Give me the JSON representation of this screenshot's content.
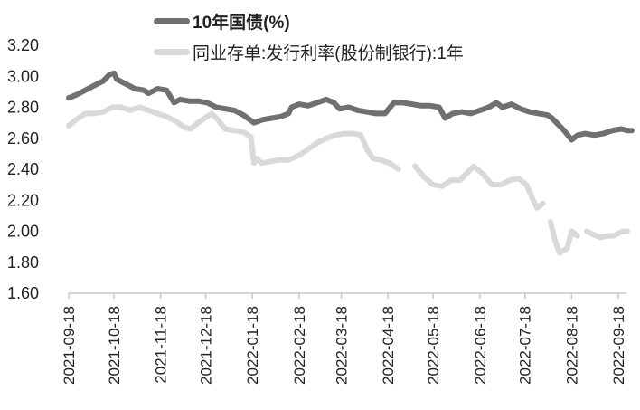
{
  "chart_data": {
    "type": "line",
    "title": "",
    "xlabel": "",
    "ylabel": "",
    "ylim": [
      1.6,
      3.2
    ],
    "yticks": [
      "3.20",
      "3.00",
      "2.80",
      "2.60",
      "2.40",
      "2.20",
      "2.00",
      "1.80",
      "1.60"
    ],
    "xticks": [
      "2021-09-18",
      "2021-10-18",
      "2021-11-18",
      "2021-12-18",
      "2022-01-18",
      "2022-02-18",
      "2022-03-18",
      "2022-04-18",
      "2022-05-18",
      "2022-06-18",
      "2022-07-18",
      "2022-08-18",
      "2022-09-18"
    ],
    "grid": false,
    "legend_position": "top",
    "series": [
      {
        "name": "10年国债(%)",
        "color": "#707070",
        "points": [
          [
            "2021-09-18",
            2.86
          ],
          [
            "2021-09-23",
            2.88
          ],
          [
            "2021-09-29",
            2.91
          ],
          [
            "2021-10-05",
            2.94
          ],
          [
            "2021-10-11",
            2.97
          ],
          [
            "2021-10-15",
            3.01
          ],
          [
            "2021-10-18",
            3.02
          ],
          [
            "2021-10-20",
            2.98
          ],
          [
            "2021-10-26",
            2.95
          ],
          [
            "2021-11-01",
            2.92
          ],
          [
            "2021-11-07",
            2.91
          ],
          [
            "2021-11-10",
            2.89
          ],
          [
            "2021-11-16",
            2.92
          ],
          [
            "2021-11-22",
            2.91
          ],
          [
            "2021-11-27",
            2.83
          ],
          [
            "2021-12-01",
            2.85
          ],
          [
            "2021-12-07",
            2.84
          ],
          [
            "2021-12-13",
            2.84
          ],
          [
            "2021-12-19",
            2.83
          ],
          [
            "2021-12-25",
            2.8
          ],
          [
            "2021-12-31",
            2.79
          ],
          [
            "2022-01-06",
            2.78
          ],
          [
            "2022-01-12",
            2.75
          ],
          [
            "2022-01-19",
            2.7
          ],
          [
            "2022-01-25",
            2.72
          ],
          [
            "2022-01-31",
            2.73
          ],
          [
            "2022-02-06",
            2.74
          ],
          [
            "2022-02-11",
            2.76
          ],
          [
            "2022-02-13",
            2.8
          ],
          [
            "2022-02-18",
            2.82
          ],
          [
            "2022-02-24",
            2.81
          ],
          [
            "2022-03-02",
            2.83
          ],
          [
            "2022-03-08",
            2.85
          ],
          [
            "2022-03-13",
            2.83
          ],
          [
            "2022-03-17",
            2.79
          ],
          [
            "2022-03-23",
            2.8
          ],
          [
            "2022-03-29",
            2.78
          ],
          [
            "2022-04-04",
            2.77
          ],
          [
            "2022-04-10",
            2.76
          ],
          [
            "2022-04-16",
            2.76
          ],
          [
            "2022-04-22",
            2.83
          ],
          [
            "2022-04-28",
            2.83
          ],
          [
            "2022-05-04",
            2.82
          ],
          [
            "2022-05-10",
            2.81
          ],
          [
            "2022-05-16",
            2.81
          ],
          [
            "2022-05-22",
            2.8
          ],
          [
            "2022-05-26",
            2.73
          ],
          [
            "2022-05-31",
            2.76
          ],
          [
            "2022-06-06",
            2.77
          ],
          [
            "2022-06-12",
            2.76
          ],
          [
            "2022-06-18",
            2.78
          ],
          [
            "2022-06-24",
            2.8
          ],
          [
            "2022-06-29",
            2.83
          ],
          [
            "2022-07-03",
            2.8
          ],
          [
            "2022-07-09",
            2.82
          ],
          [
            "2022-07-15",
            2.79
          ],
          [
            "2022-07-21",
            2.77
          ],
          [
            "2022-07-27",
            2.76
          ],
          [
            "2022-08-02",
            2.75
          ],
          [
            "2022-08-05",
            2.73
          ],
          [
            "2022-08-13",
            2.65
          ],
          [
            "2022-08-18",
            2.59
          ],
          [
            "2022-08-22",
            2.62
          ],
          [
            "2022-08-27",
            2.63
          ],
          [
            "2022-09-02",
            2.62
          ],
          [
            "2022-09-08",
            2.63
          ],
          [
            "2022-09-14",
            2.65
          ],
          [
            "2022-09-20",
            2.66
          ],
          [
            "2022-09-24",
            2.65
          ],
          [
            "2022-09-27",
            2.65
          ]
        ]
      },
      {
        "name": "同业存单:发行利率(股份制银行):1年",
        "color": "#d9d9d9",
        "points": [
          [
            "2021-09-18",
            2.68
          ],
          [
            "2021-09-23",
            2.72
          ],
          [
            "2021-09-29",
            2.76
          ],
          [
            "2021-10-05",
            2.76
          ],
          [
            "2021-10-11",
            2.77
          ],
          [
            "2021-10-17",
            2.8
          ],
          [
            "2021-10-23",
            2.8
          ],
          [
            "2021-10-29",
            2.78
          ],
          [
            "2021-11-04",
            2.8
          ],
          [
            "2021-11-10",
            2.78
          ],
          [
            "2021-11-16",
            2.76
          ],
          [
            "2021-11-22",
            2.74
          ],
          [
            "2021-11-28",
            2.71
          ],
          [
            "2021-12-04",
            2.67
          ],
          [
            "2021-12-08",
            2.66
          ],
          [
            "2021-12-13",
            2.7
          ],
          [
            "2021-12-19",
            2.74
          ],
          [
            "2021-12-22",
            2.76
          ],
          [
            "2021-12-26",
            2.72
          ],
          [
            "2021-12-31",
            2.66
          ],
          [
            "2022-01-06",
            2.65
          ],
          [
            "2022-01-12",
            2.64
          ],
          [
            "2022-01-17",
            2.61
          ],
          [
            "2022-01-19",
            2.44
          ],
          [
            "2022-01-21",
            2.47
          ],
          [
            "2022-01-24",
            2.44
          ],
          [
            "2022-01-30",
            2.45
          ],
          [
            "2022-02-05",
            2.46
          ],
          [
            "2022-02-11",
            2.46
          ],
          [
            "2022-02-18",
            2.49
          ],
          [
            "2022-02-24",
            2.53
          ],
          [
            "2022-03-02",
            2.57
          ],
          [
            "2022-03-08",
            2.6
          ],
          [
            "2022-03-14",
            2.62
          ],
          [
            "2022-03-20",
            2.63
          ],
          [
            "2022-03-26",
            2.63
          ],
          [
            "2022-03-31",
            2.62
          ],
          [
            "2022-04-04",
            2.53
          ],
          [
            "2022-04-08",
            2.47
          ],
          [
            "2022-04-13",
            2.46
          ],
          [
            "2022-04-19",
            2.44
          ],
          [
            "2022-04-25",
            2.4
          ],
          [
            "2022-05-04",
            null
          ],
          [
            "2022-05-06",
            2.42
          ],
          [
            "2022-05-12",
            2.35
          ],
          [
            "2022-05-18",
            2.3
          ],
          [
            "2022-05-24",
            2.29
          ],
          [
            "2022-05-30",
            2.33
          ],
          [
            "2022-06-05",
            2.33
          ],
          [
            "2022-06-11",
            2.39
          ],
          [
            "2022-06-14",
            2.42
          ],
          [
            "2022-06-20",
            2.37
          ],
          [
            "2022-06-26",
            2.3
          ],
          [
            "2022-07-02",
            2.3
          ],
          [
            "2022-07-08",
            2.33
          ],
          [
            "2022-07-14",
            2.34
          ],
          [
            "2022-07-19",
            2.3
          ],
          [
            "2022-07-23",
            2.21
          ],
          [
            "2022-07-26",
            2.15
          ],
          [
            "2022-07-30",
            2.18
          ],
          [
            "2022-08-01",
            null
          ],
          [
            "2022-08-04",
            2.06
          ],
          [
            "2022-08-07",
            1.94
          ],
          [
            "2022-08-10",
            1.86
          ],
          [
            "2022-08-15",
            1.89
          ],
          [
            "2022-08-18",
            2.0
          ],
          [
            "2022-08-22",
            1.97
          ],
          [
            "2022-08-25",
            null
          ],
          [
            "2022-08-28",
            2.0
          ],
          [
            "2022-09-01",
            1.98
          ],
          [
            "2022-09-06",
            1.96
          ],
          [
            "2022-09-11",
            1.97
          ],
          [
            "2022-09-15",
            1.97
          ],
          [
            "2022-09-21",
            2.0
          ],
          [
            "2022-09-24",
            2.0
          ]
        ]
      }
    ]
  },
  "legend": {
    "items": [
      {
        "label": "10年国债(%)",
        "color": "#707070"
      },
      {
        "label": "同业存单:发行利率(股份制银行):1年",
        "color": "#d9d9d9"
      }
    ]
  }
}
